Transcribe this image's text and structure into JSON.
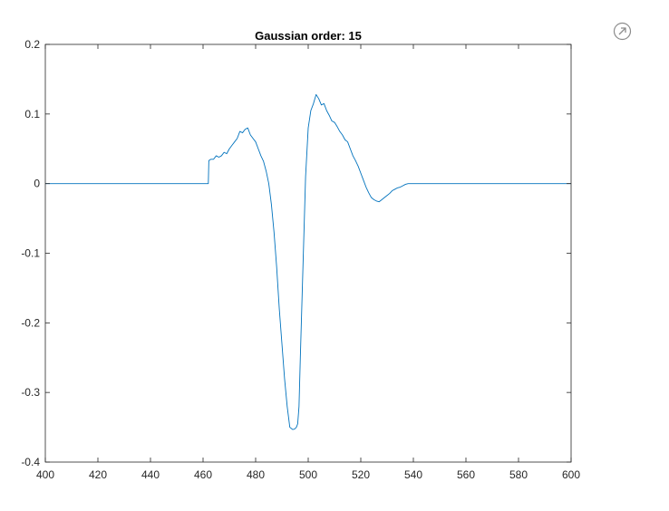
{
  "toolbar": {
    "export_icon": "arrow-up-right-circle-icon"
  },
  "colors": {
    "line": "#0072BD",
    "axis": "#262626",
    "icon": "#8c8c8c"
  },
  "chart_data": {
    "type": "line",
    "title": "Gaussian order: 15",
    "xlabel": "",
    "ylabel": "",
    "xlim": [
      400,
      600
    ],
    "ylim": [
      -0.4,
      0.2
    ],
    "xticks": [
      400,
      420,
      440,
      460,
      480,
      500,
      520,
      540,
      560,
      580,
      600
    ],
    "yticks": [
      -0.4,
      -0.3,
      -0.2,
      -0.1,
      0,
      0.1,
      0.2
    ],
    "xtick_labels": [
      "400",
      "420",
      "440",
      "460",
      "480",
      "500",
      "520",
      "540",
      "560",
      "580",
      "600"
    ],
    "ytick_labels": [
      "-0.4",
      "-0.3",
      "-0.2",
      "-0.1",
      "0",
      "0.1",
      "0.2"
    ],
    "grid": false,
    "series": [
      {
        "color": "#0072BD",
        "x": [
          400,
          462,
          462.2,
          463,
          464,
          465,
          466,
          467,
          468,
          469,
          470,
          471,
          472,
          473,
          474,
          475,
          476,
          477,
          478,
          479,
          480,
          481,
          482,
          483,
          484,
          485,
          486,
          487,
          488,
          489,
          490,
          491,
          492,
          493,
          494,
          494.5,
          495,
          495.5,
          496,
          496.5,
          497,
          498,
          499,
          500,
          501,
          502,
          503,
          504,
          505,
          506,
          507,
          508,
          509,
          510,
          511,
          512,
          513,
          514,
          515,
          516,
          517,
          518,
          519,
          520,
          521,
          522,
          523,
          524,
          525,
          526,
          527,
          528,
          529,
          530,
          531,
          532,
          533,
          534,
          535,
          536,
          537,
          538,
          539,
          600
        ],
        "y": [
          0,
          0,
          0.033,
          0.035,
          0.035,
          0.04,
          0.038,
          0.04,
          0.045,
          0.043,
          0.05,
          0.055,
          0.06,
          0.065,
          0.075,
          0.073,
          0.078,
          0.08,
          0.07,
          0.065,
          0.06,
          0.05,
          0.04,
          0.032,
          0.018,
          0.0,
          -0.03,
          -0.07,
          -0.12,
          -0.18,
          -0.23,
          -0.28,
          -0.32,
          -0.35,
          -0.353,
          -0.353,
          -0.352,
          -0.35,
          -0.345,
          -0.32,
          -0.25,
          -0.12,
          0.01,
          0.08,
          0.105,
          0.115,
          0.128,
          0.122,
          0.113,
          0.115,
          0.105,
          0.098,
          0.09,
          0.088,
          0.082,
          0.075,
          0.07,
          0.063,
          0.06,
          0.05,
          0.04,
          0.033,
          0.025,
          0.015,
          0.005,
          -0.005,
          -0.013,
          -0.02,
          -0.023,
          -0.025,
          -0.026,
          -0.023,
          -0.02,
          -0.017,
          -0.014,
          -0.01,
          -0.008,
          -0.006,
          -0.005,
          -0.003,
          -0.001,
          0,
          0,
          0
        ]
      }
    ]
  }
}
